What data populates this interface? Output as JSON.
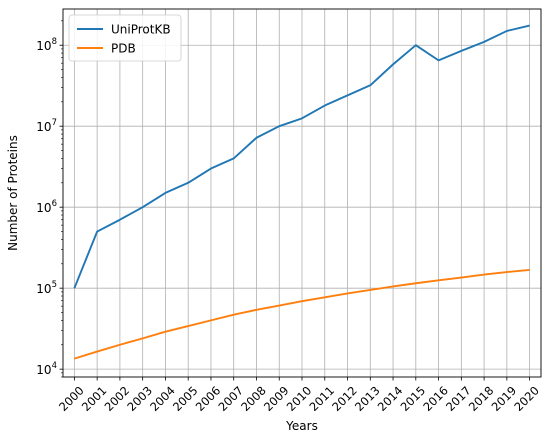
{
  "chart_data": {
    "type": "line",
    "title": "",
    "xlabel": "Years",
    "ylabel": "Number of Proteins",
    "y_scale": "log",
    "ylim": [
      8000,
      280000000
    ],
    "x_ticks": [
      2000,
      2001,
      2002,
      2003,
      2004,
      2005,
      2006,
      2007,
      2008,
      2009,
      2010,
      2011,
      2012,
      2013,
      2014,
      2015,
      2016,
      2017,
      2018,
      2019,
      2020
    ],
    "y_ticks": [
      {
        "value": 10000,
        "base": "10",
        "exp": "4"
      },
      {
        "value": 100000,
        "base": "10",
        "exp": "5"
      },
      {
        "value": 1000000,
        "base": "10",
        "exp": "6"
      },
      {
        "value": 10000000,
        "base": "10",
        "exp": "7"
      },
      {
        "value": 100000000,
        "base": "10",
        "exp": "8"
      }
    ],
    "grid": true,
    "legend_position": "top-left",
    "x": [
      2000,
      2001,
      2002,
      2003,
      2004,
      2005,
      2006,
      2007,
      2008,
      2009,
      2010,
      2011,
      2012,
      2013,
      2014,
      2015,
      2016,
      2017,
      2018,
      2019,
      2020
    ],
    "series": [
      {
        "name": "UniProtKB",
        "color": "#1f77b4",
        "values": [
          100000,
          500000,
          700000,
          1000000,
          1500000,
          2000000,
          3000000,
          4000000,
          7200000,
          10000000,
          12500000,
          18000000,
          24000000,
          32000000,
          58000000,
          100000000,
          65000000,
          85000000,
          110000000,
          150000000,
          175000000
        ]
      },
      {
        "name": "PDB",
        "color": "#ff7f0e",
        "values": [
          13500,
          16500,
          20000,
          24000,
          29000,
          34000,
          40000,
          47000,
          54000,
          61000,
          69000,
          77000,
          86000,
          95000,
          105000,
          115000,
          125000,
          135000,
          147000,
          158000,
          168000
        ]
      }
    ]
  }
}
